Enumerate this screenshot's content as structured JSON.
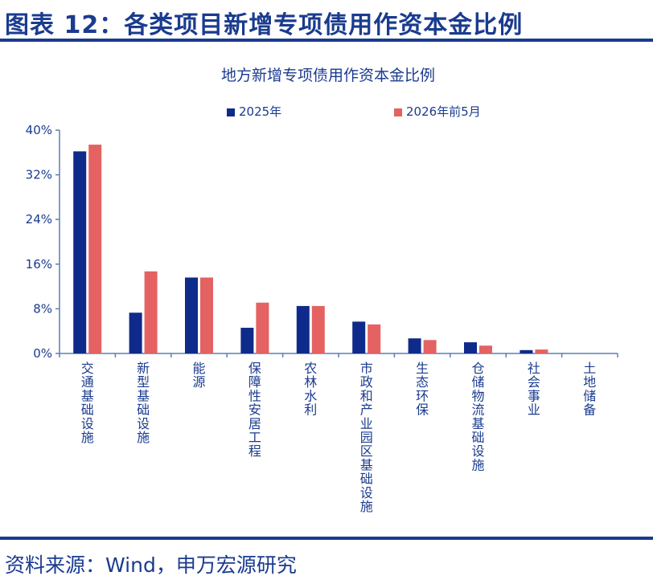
{
  "figure": {
    "title": "图表 12：各类项目新增专项债用作资本金比例",
    "source": "资料来源：Wind，申万宏源研究"
  },
  "colors": {
    "brand": "#1a3b8f",
    "series_2025": "#0e2a8a",
    "series_2026": "#e46262",
    "axis": "#5b7fb5"
  },
  "chart_data": {
    "type": "bar",
    "title": "地方新增专项债用作资本金比例",
    "categories": [
      "交通基础设施",
      "新型基础设施",
      "能源",
      "保障性安居工程",
      "农林水利",
      "市政和产业园区基础设施",
      "生态环保",
      "仓储物流基础设施",
      "社会事业",
      "土地储备"
    ],
    "series": [
      {
        "name": "2025年",
        "values": [
          36.2,
          7.3,
          13.6,
          4.6,
          8.5,
          5.7,
          2.7,
          2.0,
          0.6,
          0.0
        ]
      },
      {
        "name": "2026年前5月",
        "values": [
          37.4,
          14.7,
          13.6,
          9.1,
          8.5,
          5.2,
          2.4,
          1.4,
          0.7,
          0.0
        ]
      }
    ],
    "yticks": [
      "0%",
      "8%",
      "16%",
      "24%",
      "32%",
      "40%"
    ],
    "ylim": [
      0,
      40
    ],
    "grid": false,
    "legend": "top"
  }
}
